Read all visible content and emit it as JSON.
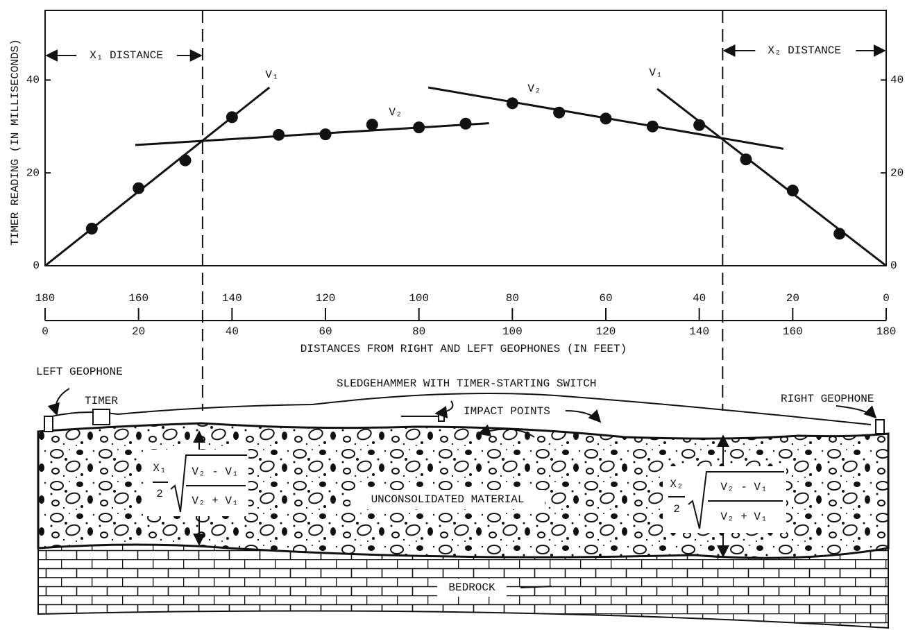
{
  "chart_data": {
    "type": "scatter",
    "y_label": "TIMER READING (IN MILLISECONDS)",
    "x_label": "DISTANCES FROM RIGHT AND LEFT GEOPHONES (IN FEET)",
    "xlim": [
      0,
      180
    ],
    "xticks": [
      0,
      20,
      40,
      60,
      80,
      100,
      120,
      140,
      160,
      180
    ],
    "x2lim": [
      180,
      0
    ],
    "x2ticks": [
      180,
      160,
      140,
      120,
      100,
      80,
      60,
      40,
      20,
      0
    ],
    "ylim": [
      0,
      55
    ],
    "yticks": [
      0,
      20,
      40
    ],
    "points": {
      "x": [
        10,
        20,
        30,
        40,
        50,
        60,
        70,
        80,
        90,
        100,
        110,
        120,
        130,
        140,
        150,
        160,
        170
      ],
      "y": [
        8,
        16.7,
        22.7,
        32,
        28.2,
        28.3,
        30.4,
        29.8,
        30.6,
        35,
        33,
        31.7,
        30,
        30.3,
        22.9,
        16.2,
        6.9
      ]
    },
    "lines": [
      {
        "label": "V₁",
        "x": [
          0,
          48
        ],
        "y": [
          0,
          38.4
        ]
      },
      {
        "label": "V₂",
        "x": [
          19.3,
          95
        ],
        "y": [
          26,
          30.7
        ]
      },
      {
        "label": "V₂",
        "x": [
          82,
          158
        ],
        "y": [
          38.4,
          25.2
        ]
      },
      {
        "label": "V₁",
        "x": [
          131,
          180
        ],
        "y": [
          38.1,
          0
        ]
      }
    ],
    "crossovers": [
      33.7,
      145
    ],
    "x1_label": "X₁ DISTANCE",
    "x2_label": "X₂ DISTANCE"
  },
  "diagram": {
    "left_geophone": "LEFT GEOPHONE",
    "timer": "TIMER",
    "sledgehammer": "SLEDGEHAMMER WITH TIMER-STARTING SWITCH",
    "impact_points": "IMPACT POINTS",
    "right_geophone": "RIGHT GEOPHONE",
    "unconsolidated": "UNCONSOLIDATED MATERIAL",
    "bedrock": "BEDROCK",
    "formula": {
      "left_coef": "X₁",
      "right_coef": "X₂",
      "half": "2",
      "numerator": "V₂ - V₁",
      "denominator": "V₂ + V₁"
    }
  }
}
